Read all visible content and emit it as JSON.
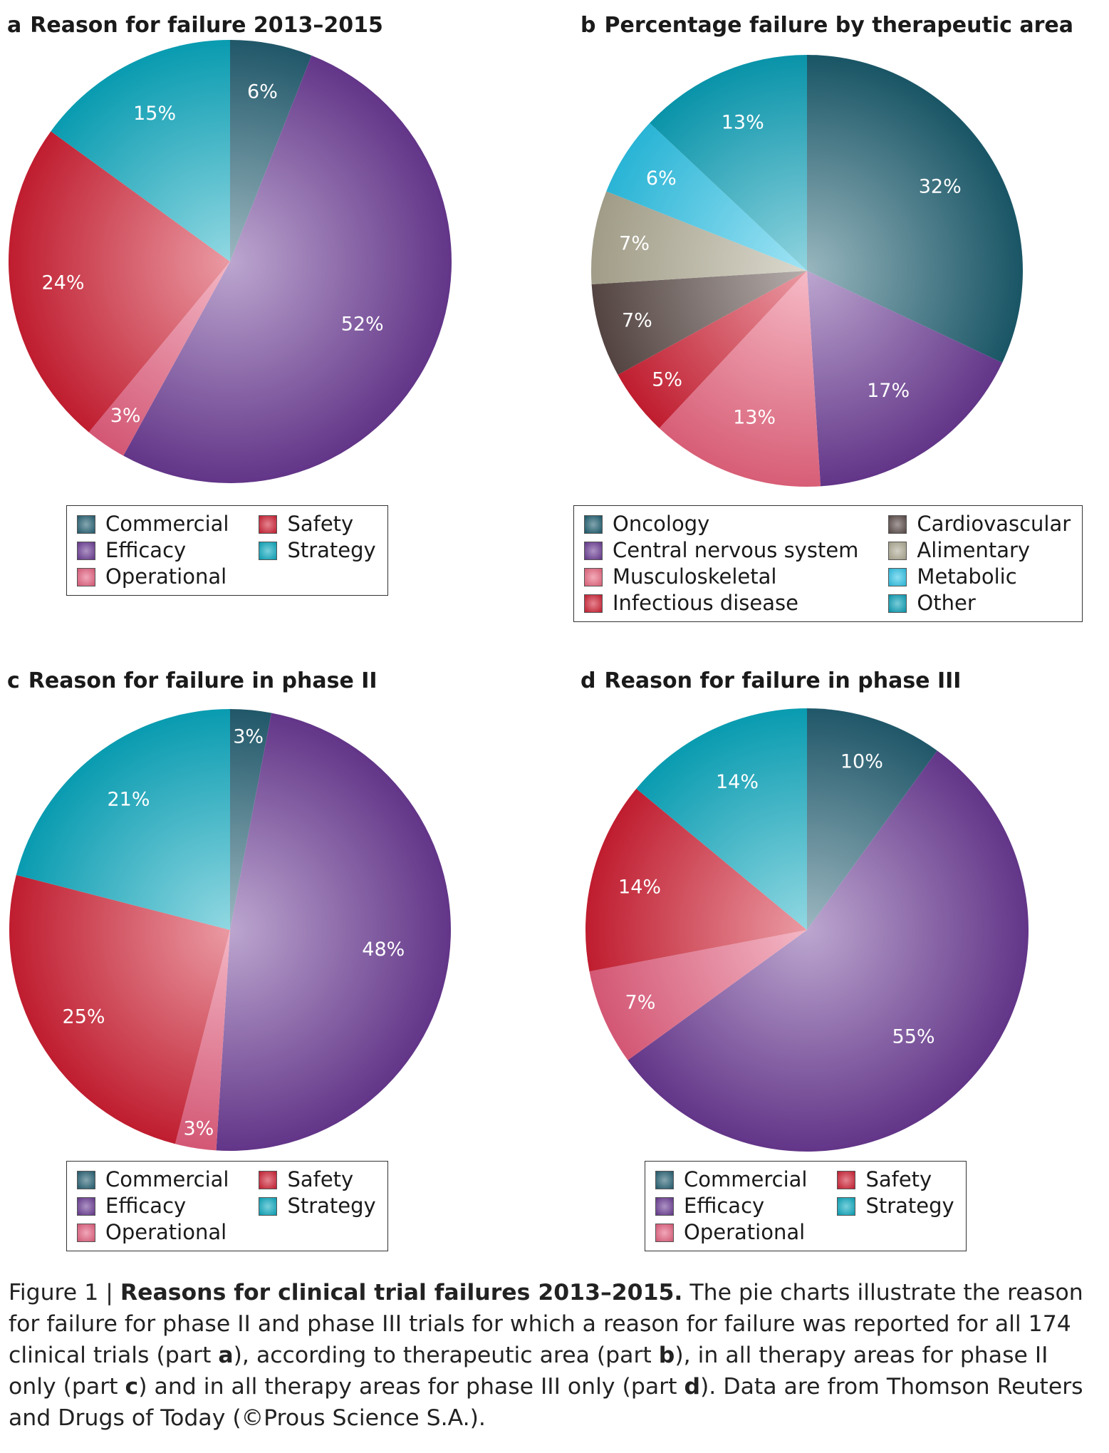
{
  "chart_data": [
    {
      "type": "pie",
      "letter": "a",
      "title": "Reason for failure 2013–2015",
      "slices": [
        {
          "name": "Commercial",
          "value": 6,
          "label": "6%",
          "color": "#235f72"
        },
        {
          "name": "Efficacy",
          "value": 52,
          "label": "52%",
          "color": "#6a3a94"
        },
        {
          "name": "Operational",
          "value": 3,
          "label": "3%",
          "color": "#e55f7f"
        },
        {
          "name": "Safety",
          "value": 24,
          "label": "24%",
          "color": "#d01f33"
        },
        {
          "name": "Strategy",
          "value": 15,
          "label": "15%",
          "color": "#0aa9bf"
        }
      ],
      "legend": [
        "Commercial",
        "Efficacy",
        "Operational",
        "Safety",
        "Strategy"
      ]
    },
    {
      "type": "pie",
      "letter": "b",
      "title": "Percentage failure by therapeutic area",
      "slices": [
        {
          "name": "Oncology",
          "value": 32,
          "label": "32%",
          "color": "#1b5c6e"
        },
        {
          "name": "Central nervous system",
          "value": 17,
          "label": "17%",
          "color": "#6a3a94"
        },
        {
          "name": "Musculoskeletal",
          "value": 13,
          "label": "13%",
          "color": "#ea6680"
        },
        {
          "name": "Infectious disease",
          "value": 5,
          "label": "5%",
          "color": "#d01f33"
        },
        {
          "name": "Cardiovascular",
          "value": 7,
          "label": "7%",
          "color": "#5a4a47"
        },
        {
          "name": "Alimentary",
          "value": 7,
          "label": "7%",
          "color": "#aeaa93"
        },
        {
          "name": "Metabolic",
          "value": 6,
          "label": "6%",
          "color": "#2dc4e8"
        },
        {
          "name": "Other",
          "value": 13,
          "label": "13%",
          "color": "#0aa0b8"
        }
      ],
      "legend": [
        "Oncology",
        "Central nervous system",
        "Musculoskeletal",
        "Infectious disease",
        "Cardiovascular",
        "Alimentary",
        "Metabolic",
        "Other"
      ]
    },
    {
      "type": "pie",
      "letter": "c",
      "title": "Reason for failure in phase II",
      "slices": [
        {
          "name": "Commercial",
          "value": 3,
          "label": "3%",
          "color": "#235f72"
        },
        {
          "name": "Efficacy",
          "value": 48,
          "label": "48%",
          "color": "#6a3a94"
        },
        {
          "name": "Operational",
          "value": 3,
          "label": "3%",
          "color": "#e55f7f"
        },
        {
          "name": "Safety",
          "value": 25,
          "label": "25%",
          "color": "#d01f33"
        },
        {
          "name": "Strategy",
          "value": 21,
          "label": "21%",
          "color": "#0aa9bf"
        }
      ],
      "legend": [
        "Commercial",
        "Efficacy",
        "Operational",
        "Safety",
        "Strategy"
      ]
    },
    {
      "type": "pie",
      "letter": "d",
      "title": "Reason for failure in phase III",
      "slices": [
        {
          "name": "Commercial",
          "value": 10,
          "label": "10%",
          "color": "#235f72"
        },
        {
          "name": "Efficacy",
          "value": 55,
          "label": "55%",
          "color": "#6a3a94"
        },
        {
          "name": "Operational",
          "value": 7,
          "label": "7%",
          "color": "#e55f7f"
        },
        {
          "name": "Safety",
          "value": 14,
          "label": "14%",
          "color": "#d01f33"
        },
        {
          "name": "Strategy",
          "value": 14,
          "label": "14%",
          "color": "#0aa9bf"
        }
      ],
      "legend": [
        "Commercial",
        "Efficacy",
        "Operational",
        "Safety",
        "Strategy"
      ]
    }
  ],
  "caption": {
    "prefix": "Figure 1 | ",
    "title": "Reasons for clinical trial failures 2013–2015.",
    "part1": " The pie charts illustrate the reason for failure for phase II and phase III trials for which a reason for failure was reported for all 174 clinical trials (part ",
    "letter_a": "a",
    "part2": "), according to therapeutic area (part ",
    "letter_b": "b",
    "part3": "), in all therapy areas for phase II only (part ",
    "letter_c": "c",
    "part4": ") and in all therapy areas for phase III only (part ",
    "letter_d": "d",
    "part5": "). Data are from Thomson Reuters and Drugs of Today (©Prous Science S.A.)."
  }
}
